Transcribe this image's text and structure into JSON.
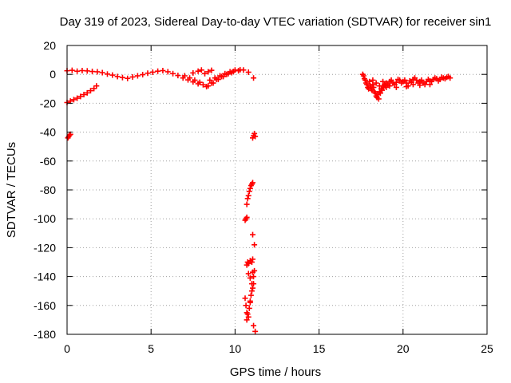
{
  "chart_data": {
    "type": "scatter",
    "title": "Day 319 of 2023, Sidereal Day-to-day VTEC variation (SDTVAR) for receiver sin1",
    "xlabel": "GPS time / hours",
    "ylabel": "SDTVAR / TECUs",
    "xlim": [
      0,
      25
    ],
    "ylim": [
      -180,
      20
    ],
    "xticks": [
      0,
      5,
      10,
      15,
      20,
      25
    ],
    "yticks": [
      20,
      0,
      -20,
      -40,
      -60,
      -80,
      -100,
      -120,
      -140,
      -160,
      -180
    ],
    "grid": true,
    "marker": "+",
    "series": [
      {
        "name": "SDTVAR",
        "color": "#ff0000",
        "points": [
          [
            0.0,
            2.5
          ],
          [
            0.3,
            2.8
          ],
          [
            0.6,
            2.2
          ],
          [
            0.9,
            2.6
          ],
          [
            1.2,
            2.4
          ],
          [
            1.5,
            2.0
          ],
          [
            1.8,
            1.8
          ],
          [
            2.1,
            1.2
          ],
          [
            2.4,
            0.2
          ],
          [
            2.7,
            -0.5
          ],
          [
            3.0,
            -1.5
          ],
          [
            3.3,
            -2.2
          ],
          [
            3.6,
            -2.8
          ],
          [
            3.9,
            -1.8
          ],
          [
            4.2,
            -1.0
          ],
          [
            4.5,
            -0.2
          ],
          [
            4.8,
            0.8
          ],
          [
            5.1,
            1.5
          ],
          [
            5.4,
            2.2
          ],
          [
            5.7,
            2.6
          ],
          [
            6.0,
            1.8
          ],
          [
            6.3,
            0.5
          ],
          [
            6.6,
            -0.8
          ],
          [
            6.9,
            -2.5
          ],
          [
            7.2,
            -3.8
          ],
          [
            7.5,
            -5.2
          ],
          [
            7.8,
            -6.5
          ],
          [
            8.1,
            -7.2
          ],
          [
            8.4,
            -8.0
          ],
          [
            8.7,
            -6.0
          ],
          [
            9.0,
            -3.5
          ],
          [
            9.3,
            -1.5
          ],
          [
            9.6,
            0.5
          ],
          [
            9.9,
            2.0
          ],
          [
            10.2,
            2.5
          ],
          [
            10.5,
            3.0
          ],
          [
            10.8,
            1.5
          ],
          [
            7.0,
            -1.0
          ],
          [
            7.3,
            -2.5
          ],
          [
            7.6,
            -4.0
          ],
          [
            7.9,
            -5.5
          ],
          [
            8.2,
            0.5
          ],
          [
            8.4,
            1.8
          ],
          [
            8.6,
            2.8
          ],
          [
            8.5,
            -4.0
          ],
          [
            8.8,
            -2.5
          ],
          [
            9.1,
            -1.0
          ],
          [
            9.4,
            0.5
          ],
          [
            9.7,
            1.8
          ],
          [
            10.0,
            3.0
          ],
          [
            10.3,
            3.2
          ],
          [
            8.3,
            -8.5
          ],
          [
            8.6,
            -6.0
          ],
          [
            8.9,
            -3.5
          ],
          [
            9.2,
            -1.5
          ],
          [
            9.5,
            0.0
          ],
          [
            9.8,
            1.2
          ],
          [
            7.5,
            1.0
          ],
          [
            7.8,
            2.2
          ],
          [
            8.0,
            3.0
          ],
          [
            11.1,
            -2.5
          ],
          [
            0.0,
            -19.5
          ],
          [
            0.2,
            -18.5
          ],
          [
            0.4,
            -17.5
          ],
          [
            0.6,
            -16.5
          ],
          [
            0.8,
            -15.3
          ],
          [
            1.0,
            -14.0
          ],
          [
            1.2,
            -12.8
          ],
          [
            1.4,
            -11.3
          ],
          [
            1.6,
            -9.8
          ],
          [
            1.75,
            -8.0
          ],
          [
            0.05,
            -44.0
          ],
          [
            0.1,
            -43.0
          ],
          [
            0.15,
            -42.0
          ],
          [
            0.2,
            -41.5
          ],
          [
            11.05,
            -44.0
          ],
          [
            11.1,
            -42.5
          ],
          [
            11.15,
            -41.0
          ],
          [
            11.2,
            -43.0
          ],
          [
            10.7,
            -90.0
          ],
          [
            10.75,
            -86.0
          ],
          [
            10.8,
            -84.0
          ],
          [
            10.85,
            -81.0
          ],
          [
            10.9,
            -79.0
          ],
          [
            10.95,
            -77.0
          ],
          [
            11.0,
            -76.0
          ],
          [
            11.05,
            -75.0
          ],
          [
            10.6,
            -101.0
          ],
          [
            10.65,
            -100.0
          ],
          [
            10.7,
            -99.0
          ],
          [
            11.05,
            -111.0
          ],
          [
            11.15,
            -118.0
          ],
          [
            10.7,
            -132.0
          ],
          [
            10.75,
            -130.0
          ],
          [
            10.8,
            -131.0
          ],
          [
            10.9,
            -129.0
          ],
          [
            11.0,
            -130.0
          ],
          [
            11.05,
            -128.0
          ],
          [
            10.8,
            -138.0
          ],
          [
            10.9,
            -141.0
          ],
          [
            11.0,
            -145.0
          ],
          [
            11.05,
            -137.0
          ],
          [
            11.1,
            -140.0
          ],
          [
            11.15,
            -136.0
          ],
          [
            10.6,
            -155.0
          ],
          [
            10.65,
            -160.0
          ],
          [
            10.7,
            -165.0
          ],
          [
            10.8,
            -168.0
          ],
          [
            10.85,
            -162.0
          ],
          [
            10.9,
            -158.0
          ],
          [
            10.95,
            -153.0
          ],
          [
            11.0,
            -150.0
          ],
          [
            11.05,
            -148.0
          ],
          [
            11.1,
            -145.0
          ],
          [
            10.7,
            -170.0
          ],
          [
            10.75,
            -166.0
          ],
          [
            10.9,
            -157.0
          ],
          [
            11.1,
            -174.0
          ],
          [
            11.2,
            -178.0
          ],
          [
            17.6,
            0.0
          ],
          [
            17.7,
            -3.0
          ],
          [
            17.8,
            -6.0
          ],
          [
            17.9,
            -9.0
          ],
          [
            18.0,
            -5.0
          ],
          [
            18.1,
            -10.0
          ],
          [
            18.2,
            -7.0
          ],
          [
            18.3,
            -12.0
          ],
          [
            18.4,
            -15.0
          ],
          [
            18.5,
            -14.0
          ],
          [
            18.6,
            -12.0
          ],
          [
            18.7,
            -10.0
          ],
          [
            18.8,
            -8.0
          ],
          [
            18.9,
            -7.0
          ],
          [
            19.0,
            -6.0
          ],
          [
            19.2,
            -5.0
          ],
          [
            19.4,
            -6.0
          ],
          [
            19.6,
            -5.5
          ],
          [
            19.8,
            -4.0
          ],
          [
            20.0,
            -5.0
          ],
          [
            20.2,
            -6.0
          ],
          [
            20.4,
            -4.5
          ],
          [
            20.6,
            -3.5
          ],
          [
            20.8,
            -4.0
          ],
          [
            21.0,
            -5.0
          ],
          [
            21.2,
            -6.0
          ],
          [
            21.4,
            -5.0
          ],
          [
            21.6,
            -4.5
          ],
          [
            21.8,
            -3.5
          ],
          [
            22.0,
            -3.0
          ],
          [
            22.2,
            -3.5
          ],
          [
            22.4,
            -2.5
          ],
          [
            22.6,
            -2.0
          ],
          [
            22.8,
            -2.5
          ],
          [
            17.65,
            -1.0
          ],
          [
            17.75,
            -4.0
          ],
          [
            17.85,
            -7.0
          ],
          [
            17.95,
            -10.0
          ],
          [
            18.05,
            -8.0
          ],
          [
            18.15,
            -11.0
          ],
          [
            18.25,
            -9.0
          ],
          [
            18.35,
            -13.0
          ],
          [
            18.45,
            -16.0
          ],
          [
            18.55,
            -17.0
          ],
          [
            18.65,
            -13.0
          ],
          [
            18.75,
            -11.0
          ],
          [
            18.85,
            -9.0
          ],
          [
            18.95,
            -8.0
          ],
          [
            19.1,
            -7.0
          ],
          [
            19.3,
            -4.0
          ],
          [
            19.5,
            -7.0
          ],
          [
            19.7,
            -3.5
          ],
          [
            19.9,
            -6.0
          ],
          [
            20.1,
            -4.0
          ],
          [
            20.3,
            -8.0
          ],
          [
            20.5,
            -5.5
          ],
          [
            20.7,
            -2.5
          ],
          [
            20.9,
            -6.0
          ],
          [
            21.1,
            -4.0
          ],
          [
            21.3,
            -7.0
          ],
          [
            21.5,
            -3.5
          ],
          [
            21.7,
            -5.0
          ],
          [
            21.9,
            -2.5
          ],
          [
            22.1,
            -4.5
          ],
          [
            22.3,
            -2.0
          ],
          [
            22.5,
            -3.0
          ],
          [
            22.7,
            -1.5
          ],
          [
            18.2,
            -4.0
          ],
          [
            18.4,
            -6.0
          ],
          [
            18.6,
            -8.0
          ],
          [
            18.8,
            -5.0
          ],
          [
            19.0,
            -9.0
          ],
          [
            19.2,
            -8.0
          ],
          [
            19.6,
            -9.0
          ],
          [
            20.2,
            -8.5
          ],
          [
            20.6,
            -7.0
          ],
          [
            21.0,
            -7.5
          ],
          [
            21.6,
            -7.0
          ]
        ]
      }
    ]
  }
}
